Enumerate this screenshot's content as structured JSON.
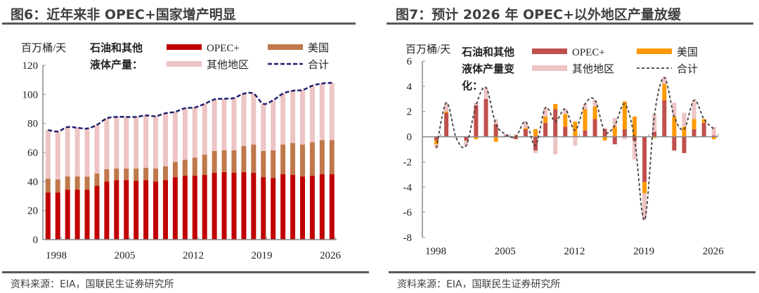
{
  "left": {
    "title": "图6：近年来非 OPEC+国家增产明显",
    "source": "资料来源：EIA，国联民生证券研究所"
  },
  "right": {
    "title": "图7：预计 2026 年 OPEC+以外地区产量放缓",
    "source": "资料来源：EIA，国联民生证券研究所"
  },
  "chart_data": [
    {
      "type": "bar",
      "stacked": true,
      "unit": "百万桶/天",
      "legend_title": [
        "石油和其他",
        "液体产量："
      ],
      "categories": [
        1998,
        1999,
        2000,
        2001,
        2002,
        2003,
        2004,
        2005,
        2006,
        2007,
        2008,
        2009,
        2010,
        2011,
        2012,
        2013,
        2014,
        2015,
        2016,
        2017,
        2018,
        2019,
        2020,
        2021,
        2022,
        2023,
        2024,
        2025,
        2026,
        2027
      ],
      "xtick_labels": [
        "1998",
        "2005",
        "2012",
        "2019",
        "2026"
      ],
      "ylim": [
        0,
        120
      ],
      "yticks": [
        0,
        20,
        40,
        60,
        80,
        100,
        120
      ],
      "series": [
        {
          "name": "OPEC+",
          "color": "#C00000",
          "values": [
            32.5,
            32.5,
            34.5,
            34.5,
            34.3,
            37,
            40,
            41,
            41,
            40.5,
            41,
            40,
            41,
            43,
            44,
            44,
            44.5,
            46,
            46.5,
            46,
            46.5,
            46,
            43,
            42.5,
            45,
            44.5,
            43.5,
            44,
            45,
            45
          ]
        },
        {
          "name": "美国",
          "color": "#C0784A",
          "values": [
            9.5,
            9,
            9,
            9,
            9,
            8.5,
            8.5,
            8,
            8,
            8.5,
            8.5,
            9,
            9.5,
            10.5,
            11,
            12.5,
            14,
            15,
            15,
            15.5,
            18,
            19.5,
            18,
            19,
            20.5,
            22,
            22,
            23,
            23.5,
            23.5
          ]
        },
        {
          "name": "其他地区",
          "color": "#EEC4C4",
          "values": [
            33.5,
            33,
            34,
            33.5,
            33.2,
            33.5,
            35,
            35.5,
            35.5,
            35.5,
            36,
            36,
            36.5,
            34.5,
            35.5,
            34.5,
            35,
            35.5,
            35.5,
            36,
            36,
            35,
            32.5,
            34.5,
            35,
            36,
            37.5,
            39,
            39,
            39.5
          ]
        }
      ],
      "line": {
        "name": "合计",
        "color": "#1F1F6E",
        "style": "dashed"
      }
    },
    {
      "type": "bar",
      "stacked": true,
      "unit": "百万桶/天",
      "legend_title": [
        "石油和其他",
        "液体产量变",
        "化："
      ],
      "categories": [
        1999,
        2000,
        2001,
        2002,
        2003,
        2004,
        2005,
        2006,
        2007,
        2008,
        2009,
        2010,
        2011,
        2012,
        2013,
        2014,
        2015,
        2016,
        2017,
        2018,
        2019,
        2020,
        2021,
        2022,
        2023,
        2024,
        2025,
        2026,
        2027
      ],
      "xtick_labels": [
        "1998",
        "2005",
        "2012",
        "2019",
        "2026"
      ],
      "ylim": [
        -8,
        6
      ],
      "yticks": [
        -8,
        -6,
        -4,
        -2,
        0,
        2,
        4,
        6
      ],
      "series": [
        {
          "name": "OPEC+",
          "color": "#C0504D",
          "values": [
            -0.3,
            1.9,
            0,
            -0.3,
            2.5,
            3.0,
            1.0,
            0.1,
            -0.2,
            0.6,
            -1.1,
            1.1,
            2.2,
            0.8,
            0,
            0.5,
            1.4,
            0.6,
            -0.6,
            0.6,
            -0.3,
            -3.6,
            0.4,
            2.9,
            -1.1,
            -1.3,
            0.6,
            1.1,
            0.1
          ]
        },
        {
          "name": "美国",
          "color": "#FF9900",
          "values": [
            -0.3,
            0.1,
            0,
            0,
            -0.2,
            0,
            -0.4,
            0,
            0.1,
            0.1,
            0.6,
            0.5,
            0.4,
            1.0,
            1.2,
            1.7,
            1.0,
            -0.3,
            0.8,
            2.2,
            1.6,
            -0.9,
            -0.1,
            1.3,
            1.6,
            0.8,
            0.8,
            0.3,
            -0.2
          ]
        },
        {
          "name": "其他地区",
          "color": "#EDC3C3",
          "values": [
            -0.3,
            0.7,
            -0.1,
            -0.4,
            0.2,
            0.9,
            0.4,
            0.1,
            0.1,
            0.5,
            -0.2,
            0.7,
            -1.4,
            0.4,
            -0.7,
            0.4,
            0.5,
            0.1,
            0.7,
            -0.2,
            -1.5,
            -2.1,
            1.4,
            0.5,
            1.1,
            1.1,
            1.5,
            0,
            0.7
          ]
        }
      ],
      "line": {
        "name": "合计",
        "color": "#404040",
        "style": "dashed"
      }
    }
  ]
}
